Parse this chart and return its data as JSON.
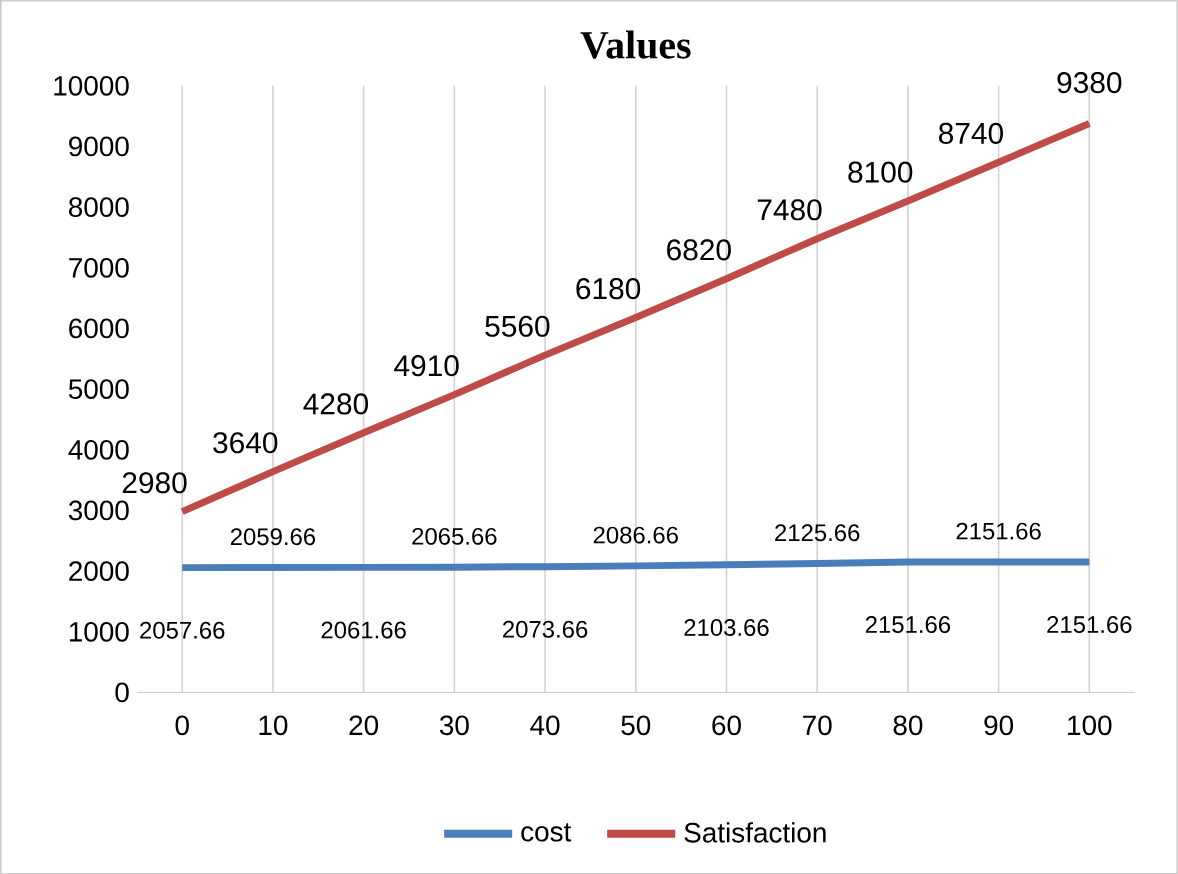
{
  "chart_data": {
    "type": "line",
    "title": "Values",
    "categories": [
      "0",
      "10",
      "20",
      "30",
      "40",
      "50",
      "60",
      "70",
      "80",
      "90",
      "100"
    ],
    "series": [
      {
        "name": "cost",
        "color": "#4a7ebb",
        "values": [
          2057.66,
          2059.66,
          2061.66,
          2065.66,
          2073.66,
          2086.66,
          2103.66,
          2125.66,
          2151.66,
          2151.66,
          2151.66
        ]
      },
      {
        "name": "Satisfaction",
        "color": "#be4b48",
        "values": [
          2980,
          3640,
          4280,
          4910,
          5560,
          6180,
          6820,
          7480,
          8100,
          8740,
          9380
        ]
      }
    ],
    "ylim": [
      0,
      10000
    ],
    "yticks": [
      0,
      1000,
      2000,
      3000,
      4000,
      5000,
      6000,
      7000,
      8000,
      9000,
      10000
    ],
    "grid": "x",
    "legend": "bottom",
    "data_labels": true,
    "marker": "none",
    "line_style": "solid"
  }
}
